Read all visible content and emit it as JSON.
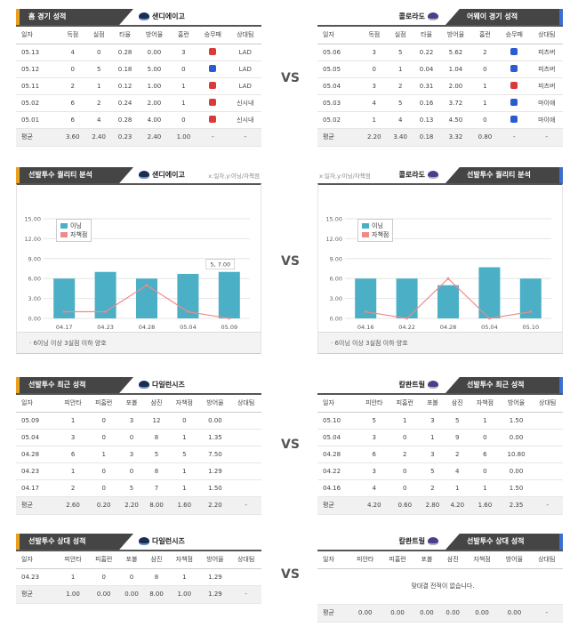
{
  "vs": "VS",
  "colors": {
    "bar": "#4bafc5",
    "line": "#f08a8a",
    "win": "#2b5bd1",
    "loss": "#d93a3a"
  },
  "home": {
    "title": "홈 경기 성적",
    "team": "샌디에이고",
    "headers": [
      "일자",
      "득점",
      "실점",
      "타율",
      "방어율",
      "홈런",
      "승무패",
      "상대팀"
    ],
    "rows": [
      [
        "05.13",
        "4",
        "0",
        "0.28",
        "0.00",
        "3",
        "L",
        "LAD"
      ],
      [
        "05.12",
        "0",
        "5",
        "0.18",
        "5.00",
        "0",
        "W",
        "LAD"
      ],
      [
        "05.11",
        "2",
        "1",
        "0.12",
        "1.00",
        "1",
        "L",
        "LAD"
      ],
      [
        "05.02",
        "6",
        "2",
        "0.24",
        "2.00",
        "1",
        "L",
        "신시내"
      ],
      [
        "05.01",
        "6",
        "4",
        "0.28",
        "4.00",
        "0",
        "L",
        "신시내"
      ]
    ],
    "avg": [
      "평균",
      "3.60",
      "2.40",
      "0.23",
      "2.40",
      "1.00",
      "-",
      "-"
    ]
  },
  "away": {
    "title": "어웨이 경기 성적",
    "team": "콜로라도",
    "headers": [
      "일자",
      "득점",
      "실점",
      "타율",
      "방어율",
      "홈런",
      "승무패",
      "상대팀"
    ],
    "rows": [
      [
        "05.06",
        "3",
        "5",
        "0.22",
        "5.62",
        "2",
        "W",
        "피츠버"
      ],
      [
        "05.05",
        "0",
        "1",
        "0.04",
        "1.04",
        "0",
        "W",
        "피츠버"
      ],
      [
        "05.04",
        "3",
        "2",
        "0.31",
        "2.00",
        "1",
        "L",
        "피츠버"
      ],
      [
        "05.03",
        "4",
        "5",
        "0.16",
        "3.72",
        "1",
        "W",
        "마이애"
      ],
      [
        "05.02",
        "1",
        "4",
        "0.13",
        "4.50",
        "0",
        "W",
        "마이애"
      ]
    ],
    "avg": [
      "평균",
      "2.20",
      "3.40",
      "0.18",
      "3.32",
      "0.80",
      "-",
      "-"
    ]
  },
  "quality_left": {
    "title": "선발투수 퀄리티 분석",
    "team": "샌디에이고",
    "axis_caption": "x:일자,y:이닝/자책점",
    "note": "· 6이닝 이상 3실점 이하 양호",
    "annotation": "5, 7.00",
    "chart_data": {
      "type": "bar",
      "categories": [
        "04.17",
        "04.23",
        "04.28",
        "05.04",
        "05.09"
      ],
      "ylim": [
        0,
        15
      ],
      "yticks": [
        "0.00",
        "3.00",
        "6.00",
        "9.00",
        "12.00",
        "15.00"
      ],
      "series": [
        {
          "name": "이닝",
          "type": "bar",
          "values": [
            6.0,
            7.0,
            6.0,
            6.7,
            7.0
          ]
        },
        {
          "name": "자책점",
          "type": "line",
          "values": [
            1,
            1,
            5,
            1,
            0
          ]
        }
      ]
    }
  },
  "quality_right": {
    "title": "선발투수 퀄리티 분석",
    "team": "콜로라도",
    "axis_caption": "x:일자,y:이닝/자책점",
    "note": "· 6이닝 이상 3실점 이하 양호",
    "chart_data": {
      "type": "bar",
      "categories": [
        "04.16",
        "04.22",
        "04.28",
        "05.04",
        "05.10"
      ],
      "ylim": [
        0,
        15
      ],
      "yticks": [
        "0.00",
        "3.00",
        "6.00",
        "9.00",
        "12.00",
        "15.00"
      ],
      "series": [
        {
          "name": "이닝",
          "type": "bar",
          "values": [
            6.0,
            6.0,
            5.0,
            7.7,
            6.0
          ]
        },
        {
          "name": "자책점",
          "type": "line",
          "values": [
            1,
            0,
            6,
            0,
            1
          ]
        }
      ]
    }
  },
  "recent_left": {
    "title": "선발투수 최근 성적",
    "team": "다일런시즈",
    "headers": [
      "일자",
      "피안타",
      "피홈런",
      "포볼",
      "삼진",
      "자책점",
      "방어율",
      "상대팀"
    ],
    "rows": [
      [
        "05.09",
        "1",
        "0",
        "3",
        "12",
        "0",
        "0.00",
        ""
      ],
      [
        "05.04",
        "3",
        "0",
        "0",
        "8",
        "1",
        "1.35",
        ""
      ],
      [
        "04.28",
        "6",
        "1",
        "3",
        "5",
        "5",
        "7.50",
        ""
      ],
      [
        "04.23",
        "1",
        "0",
        "0",
        "8",
        "1",
        "1.29",
        ""
      ],
      [
        "04.17",
        "2",
        "0",
        "5",
        "7",
        "1",
        "1.50",
        ""
      ]
    ],
    "avg": [
      "평균",
      "2.60",
      "0.20",
      "2.20",
      "8.00",
      "1.60",
      "2.20",
      "-"
    ]
  },
  "recent_right": {
    "title": "선발투수 최근 성적",
    "team": "칼콴트릴",
    "headers": [
      "일자",
      "피안타",
      "피홈런",
      "포볼",
      "삼진",
      "자책점",
      "방어율",
      "상대팀"
    ],
    "rows": [
      [
        "05.10",
        "5",
        "1",
        "3",
        "5",
        "1",
        "1.50",
        ""
      ],
      [
        "05.04",
        "3",
        "0",
        "1",
        "9",
        "0",
        "0.00",
        ""
      ],
      [
        "04.28",
        "6",
        "2",
        "3",
        "2",
        "6",
        "10.80",
        ""
      ],
      [
        "04.22",
        "3",
        "0",
        "5",
        "4",
        "0",
        "0.00",
        ""
      ],
      [
        "04.16",
        "4",
        "0",
        "2",
        "1",
        "1",
        "1.50",
        ""
      ]
    ],
    "avg": [
      "평균",
      "4.20",
      "0.60",
      "2.80",
      "4.20",
      "1.60",
      "2.35",
      "-"
    ]
  },
  "vs_left": {
    "title": "선발투수 상대 성적",
    "team": "다일런시즈",
    "headers": [
      "일자",
      "피안타",
      "피홈런",
      "포볼",
      "삼진",
      "자책점",
      "방어율",
      "상대팀"
    ],
    "rows": [
      [
        "04.23",
        "1",
        "0",
        "0",
        "8",
        "1",
        "1.29",
        ""
      ]
    ],
    "avg": [
      "평균",
      "1.00",
      "0.00",
      "0.00",
      "8.00",
      "1.00",
      "1.29",
      "-"
    ]
  },
  "vs_right": {
    "title": "선발투수 상대 성적",
    "team": "칼콴트릴",
    "headers": [
      "일자",
      "피안타",
      "피홈런",
      "포볼",
      "삼진",
      "자책점",
      "방어율",
      "상대팀"
    ],
    "empty": "맞대결 전적이 없습니다.",
    "avg": [
      "평균",
      "0.00",
      "0.00",
      "0.00",
      "0.00",
      "0.00",
      "0.00",
      "-"
    ]
  }
}
